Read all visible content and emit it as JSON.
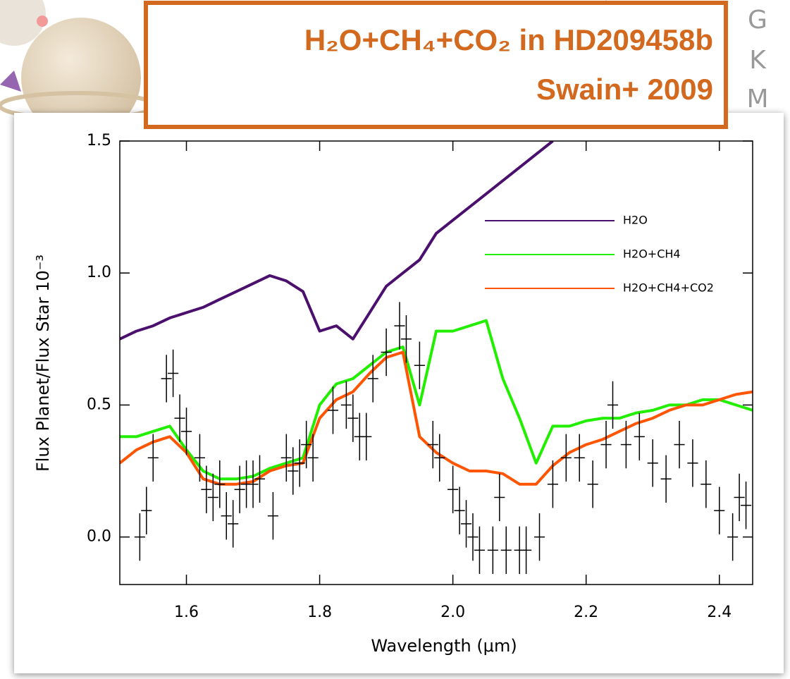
{
  "slide_labels": [
    "G",
    "K",
    "M"
  ],
  "chart_data": {
    "type": "line",
    "title": "H₂O+CH₄+CO₂ in HD209458b",
    "subtitle": "Swain+ 2009",
    "x_label": "Wavelength (μm)",
    "y_label": "Flux Planet/Flux Star 10⁻³",
    "xlim": [
      1.5,
      2.45
    ],
    "ylim": [
      -0.18,
      1.5
    ],
    "xticks": [
      1.6,
      1.8,
      {
        "value": 2,
        "label": "2.0"
      },
      2.2,
      2.4
    ],
    "yticks": [
      {
        "value": 0,
        "label": "0.0"
      },
      0.5,
      {
        "value": 1,
        "label": "1.0"
      },
      1.5
    ],
    "legend": "upper right",
    "x": [
      1.5,
      1.525,
      1.55,
      1.575,
      1.6,
      1.625,
      1.65,
      1.675,
      1.7,
      1.725,
      1.75,
      1.775,
      1.8,
      1.825,
      1.85,
      1.875,
      1.9,
      1.925,
      1.95,
      1.975,
      2.0,
      2.025,
      2.05,
      2.075,
      2.1,
      2.125,
      2.15,
      2.175,
      2.2,
      2.225,
      2.25,
      2.275,
      2.3,
      2.325,
      2.35,
      2.375,
      2.4,
      2.425,
      2.45
    ],
    "series": [
      {
        "name": "H2O",
        "color": "#4b0f6e",
        "values": [
          0.75,
          0.78,
          0.8,
          0.83,
          0.85,
          0.87,
          0.9,
          0.93,
          0.96,
          0.99,
          0.97,
          0.93,
          0.78,
          0.8,
          0.75,
          0.85,
          0.95,
          1.0,
          1.05,
          1.15,
          1.2,
          1.25,
          1.3,
          1.35,
          1.4,
          1.45,
          1.5,
          null,
          null,
          null,
          null,
          null,
          null,
          null,
          null,
          null,
          null,
          null,
          null
        ]
      },
      {
        "name": "H2O+CH4",
        "color": "#22ee00",
        "values": [
          0.38,
          0.38,
          0.4,
          0.42,
          0.33,
          0.25,
          0.22,
          0.22,
          0.23,
          0.26,
          0.28,
          0.3,
          0.5,
          0.58,
          0.6,
          0.65,
          0.7,
          0.72,
          0.5,
          0.78,
          0.78,
          0.8,
          0.82,
          0.6,
          0.45,
          0.28,
          0.42,
          0.42,
          0.44,
          0.45,
          0.45,
          0.47,
          0.48,
          0.5,
          0.5,
          0.52,
          0.52,
          0.5,
          0.48
        ]
      },
      {
        "name": "H2O+CH4+CO2",
        "color": "#ff5500",
        "values": [
          0.28,
          0.33,
          0.36,
          0.38,
          0.32,
          0.22,
          0.2,
          0.2,
          0.21,
          0.25,
          0.27,
          0.28,
          0.45,
          0.52,
          0.55,
          0.62,
          0.68,
          0.7,
          0.38,
          0.32,
          0.28,
          0.25,
          0.25,
          0.24,
          0.2,
          0.2,
          0.27,
          0.32,
          0.35,
          0.37,
          0.4,
          0.43,
          0.45,
          0.48,
          0.5,
          0.5,
          0.52,
          0.54,
          0.55
        ]
      }
    ],
    "observations": {
      "color": "#000000",
      "xerror": 0.008,
      "x": [
        1.53,
        1.54,
        1.55,
        1.57,
        1.58,
        1.59,
        1.6,
        1.62,
        1.63,
        1.64,
        1.65,
        1.66,
        1.67,
        1.68,
        1.69,
        1.7,
        1.71,
        1.73,
        1.75,
        1.76,
        1.77,
        1.78,
        1.79,
        1.82,
        1.84,
        1.85,
        1.86,
        1.87,
        1.88,
        1.9,
        1.92,
        1.93,
        1.95,
        1.97,
        1.98,
        2.0,
        2.01,
        2.02,
        2.03,
        2.04,
        2.06,
        2.07,
        2.08,
        2.1,
        2.11,
        2.13,
        2.15,
        2.17,
        2.19,
        2.21,
        2.23,
        2.24,
        2.26,
        2.28,
        2.3,
        2.32,
        2.34,
        2.36,
        2.38,
        2.4,
        2.42,
        2.43,
        2.44
      ],
      "values": [
        0.0,
        0.1,
        0.3,
        0.6,
        0.62,
        0.45,
        0.4,
        0.3,
        0.18,
        0.15,
        0.2,
        0.08,
        0.05,
        0.18,
        0.2,
        0.2,
        0.22,
        0.08,
        0.3,
        0.25,
        0.28,
        0.35,
        0.3,
        0.48,
        0.5,
        0.45,
        0.38,
        0.38,
        0.6,
        0.7,
        0.8,
        0.75,
        0.65,
        0.35,
        0.3,
        0.18,
        0.1,
        0.05,
        0.0,
        -0.05,
        -0.05,
        0.15,
        -0.05,
        -0.05,
        -0.05,
        0.0,
        0.2,
        0.3,
        0.3,
        0.2,
        0.35,
        0.5,
        0.35,
        0.38,
        0.28,
        0.22,
        0.35,
        0.28,
        0.2,
        0.1,
        0.0,
        0.15,
        0.12
      ],
      "errors": [
        0.09,
        0.09,
        0.09,
        0.09,
        0.09,
        0.09,
        0.09,
        0.09,
        0.09,
        0.09,
        0.09,
        0.09,
        0.09,
        0.09,
        0.09,
        0.09,
        0.09,
        0.09,
        0.09,
        0.09,
        0.09,
        0.09,
        0.09,
        0.09,
        0.09,
        0.09,
        0.09,
        0.09,
        0.09,
        0.09,
        0.09,
        0.09,
        0.09,
        0.09,
        0.09,
        0.09,
        0.09,
        0.09,
        0.09,
        0.09,
        0.09,
        0.09,
        0.09,
        0.09,
        0.09,
        0.09,
        0.09,
        0.09,
        0.09,
        0.09,
        0.09,
        0.09,
        0.09,
        0.09,
        0.09,
        0.09,
        0.09,
        0.09,
        0.09,
        0.09,
        0.09,
        0.09,
        0.09
      ]
    }
  }
}
